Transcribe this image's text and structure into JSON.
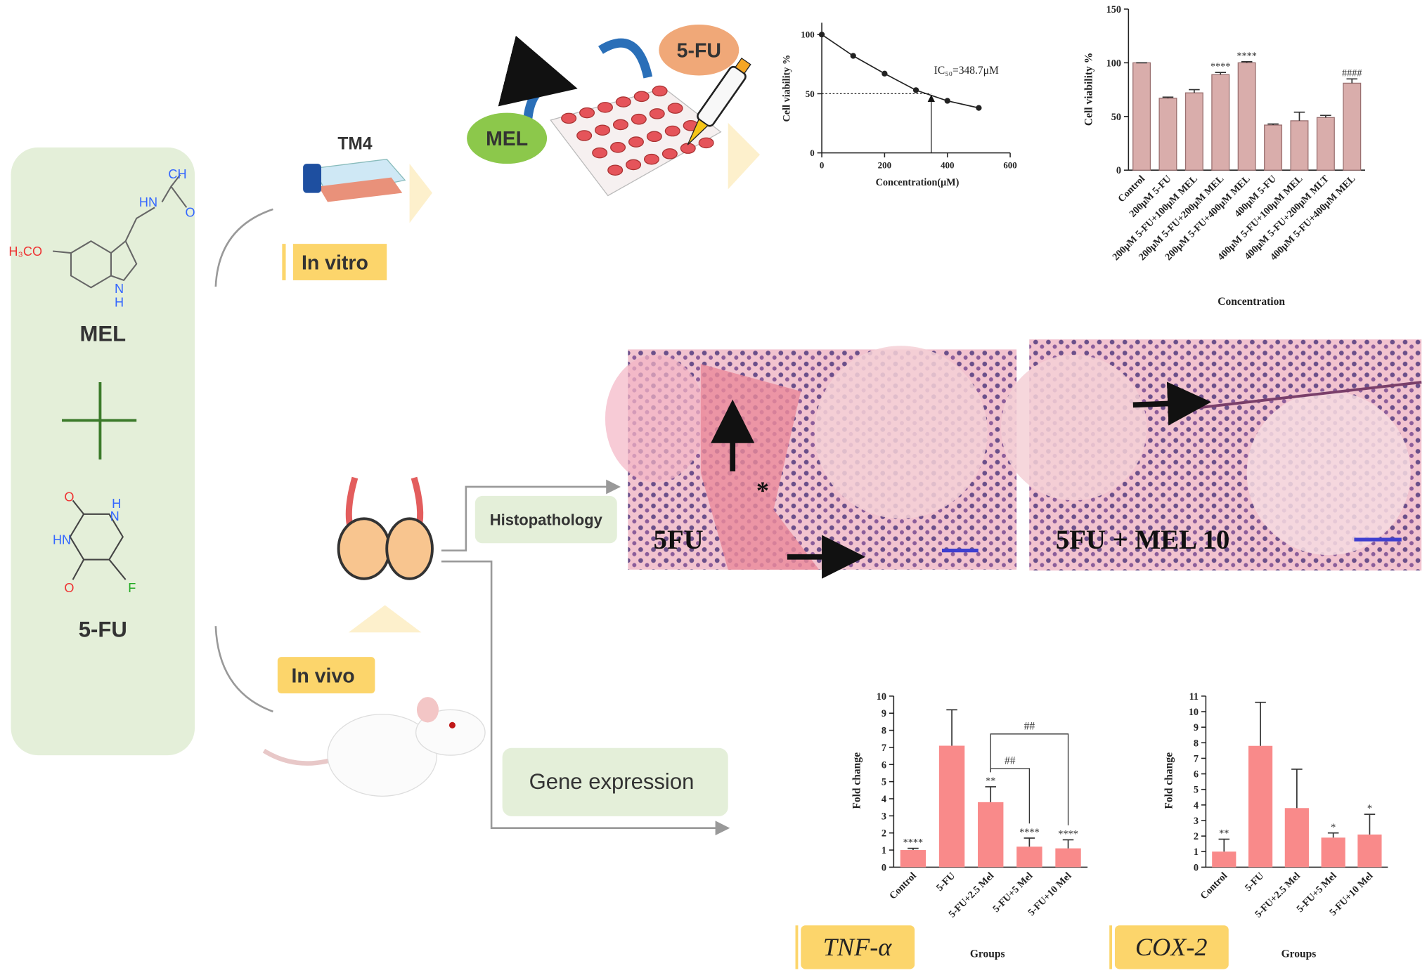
{
  "in_vitro": {
    "label": "In vitro",
    "cell_line": "TM4",
    "drugs": [
      "MEL",
      "5-FU"
    ]
  },
  "in_vivo": {
    "label": "In vivo",
    "branches": [
      "Histopathology",
      "Gene expression"
    ]
  },
  "compounds": [
    {
      "name": "MEL",
      "atoms": [
        "H₃CO",
        "N",
        "H",
        "HN",
        "O",
        "CH"
      ]
    },
    {
      "name": "5-FU",
      "atoms": [
        "O",
        "H",
        "N",
        "HN",
        "O",
        "F"
      ]
    }
  ],
  "histology": [
    {
      "label": "5FU",
      "marker": "*"
    },
    {
      "label": "5FU + MEL 10"
    }
  ],
  "chart_data": [
    {
      "type": "line",
      "x": [
        0,
        100,
        200,
        300,
        400,
        500
      ],
      "values": [
        100,
        82,
        67,
        53,
        44,
        38
      ],
      "xlim": [
        0,
        600
      ],
      "xticks": [
        0,
        200,
        400,
        600
      ],
      "ylim": [
        0,
        110
      ],
      "yticks": [
        0,
        50,
        100
      ],
      "x_label": "Concentration(μM)",
      "y_label": "Cell viability %",
      "annotation": "IC₅₀=348.7μM",
      "ic50": 348.7,
      "ic50_level": 50,
      "color": "#222222"
    },
    {
      "type": "bar",
      "categories": [
        "Control",
        "200μM 5-FU",
        "200μM 5-FU+100μM MEL",
        "200μM 5-FU+200μM MEL",
        "200μM 5-FU+400μM MEL",
        "400μM 5-FU",
        "400μM 5-FU+100μM MEL",
        "400μM 5-FU+200μM MLT",
        "400μM 5-FU+400μM MEL"
      ],
      "values": [
        100,
        67,
        72,
        89,
        100,
        42,
        46,
        49,
        81
      ],
      "errors": [
        0,
        1,
        3,
        2,
        1,
        1,
        8,
        2,
        4
      ],
      "significance": [
        null,
        null,
        null,
        "****",
        "****",
        null,
        null,
        null,
        "####"
      ],
      "ylim": [
        0,
        150
      ],
      "yticks": [
        0,
        50,
        100,
        150
      ],
      "x_label": "Concentration",
      "y_label": "Cell viability %",
      "color": "#d9adab"
    },
    {
      "type": "bar",
      "title": "TNF-α",
      "categories": [
        "Control",
        "5-FU",
        "5-FU+2.5 Mel",
        "5-FU+5 Mel",
        "5-FU+10 Mel"
      ],
      "values": [
        1.0,
        7.1,
        3.8,
        1.2,
        1.1
      ],
      "errors": [
        0.1,
        2.1,
        0.9,
        0.5,
        0.5
      ],
      "significance": [
        "****",
        null,
        "**",
        "****",
        "****"
      ],
      "brackets": [
        {
          "from": 2,
          "to": 3,
          "label": "##"
        },
        {
          "from": 2,
          "to": 4,
          "label": "##"
        }
      ],
      "ylim": [
        0,
        10
      ],
      "yticks": [
        0,
        1,
        2,
        3,
        4,
        5,
        6,
        7,
        8,
        9,
        10
      ],
      "x_label": "Groups",
      "y_label": "Fold change",
      "color": "#f98a8a"
    },
    {
      "type": "bar",
      "title": "COX-2",
      "categories": [
        "Control",
        "5-FU",
        "5-FU+2.5 Mel",
        "5-FU+5 Mel",
        "5-FU+10 Mel"
      ],
      "values": [
        1.0,
        7.8,
        3.8,
        1.9,
        2.1
      ],
      "errors": [
        0.8,
        2.8,
        2.5,
        0.3,
        1.3
      ],
      "significance": [
        "**",
        null,
        null,
        "*",
        "*"
      ],
      "ylim": [
        0,
        11
      ],
      "yticks": [
        0,
        1,
        2,
        3,
        4,
        5,
        6,
        7,
        8,
        9,
        10,
        11
      ],
      "x_label": "Groups",
      "y_label": "Fold change",
      "color": "#f98a8a"
    }
  ]
}
